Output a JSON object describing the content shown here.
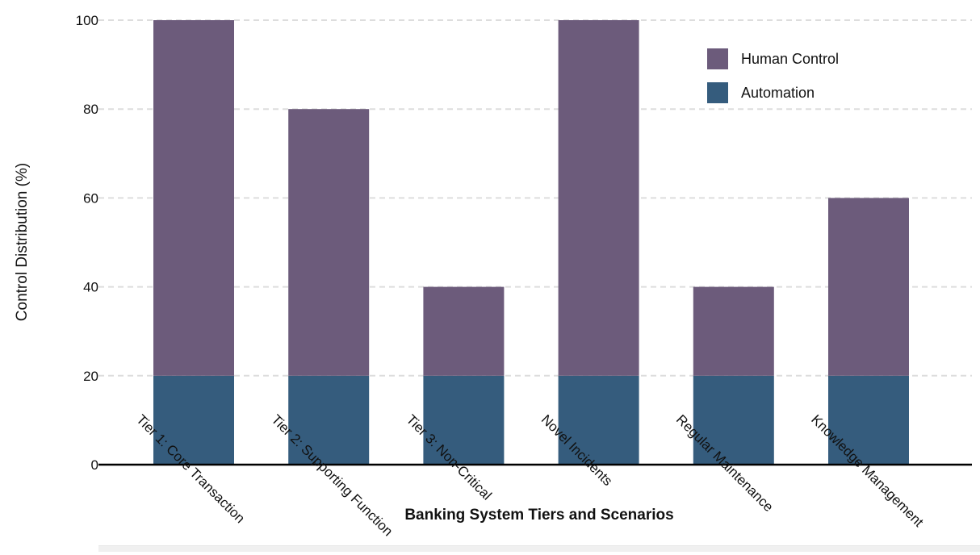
{
  "chart_data": {
    "type": "bar",
    "stacked": true,
    "categories": [
      "Tier 1: Core Transaction",
      "Tier 2: Supporting Function",
      "Tier 3: Non-Critical",
      "Novel Incidents",
      "Regular Maintenance",
      "Knowledge Management"
    ],
    "series": [
      {
        "name": "Automation",
        "values": [
          20,
          20,
          20,
          20,
          20,
          20
        ],
        "color": "#355c7d"
      },
      {
        "name": "Human Control",
        "values": [
          80,
          60,
          20,
          80,
          20,
          40
        ],
        "color": "#6c5b7b"
      }
    ],
    "title": "",
    "xlabel": "Banking System Tiers and Scenarios",
    "ylabel": "Control Distribution (%)",
    "ylim": [
      0,
      100
    ],
    "yticks": [
      0,
      20,
      40,
      60,
      80,
      100
    ],
    "grid": true,
    "legend": {
      "placement": "top-right",
      "order": [
        "Human Control",
        "Automation"
      ]
    }
  }
}
